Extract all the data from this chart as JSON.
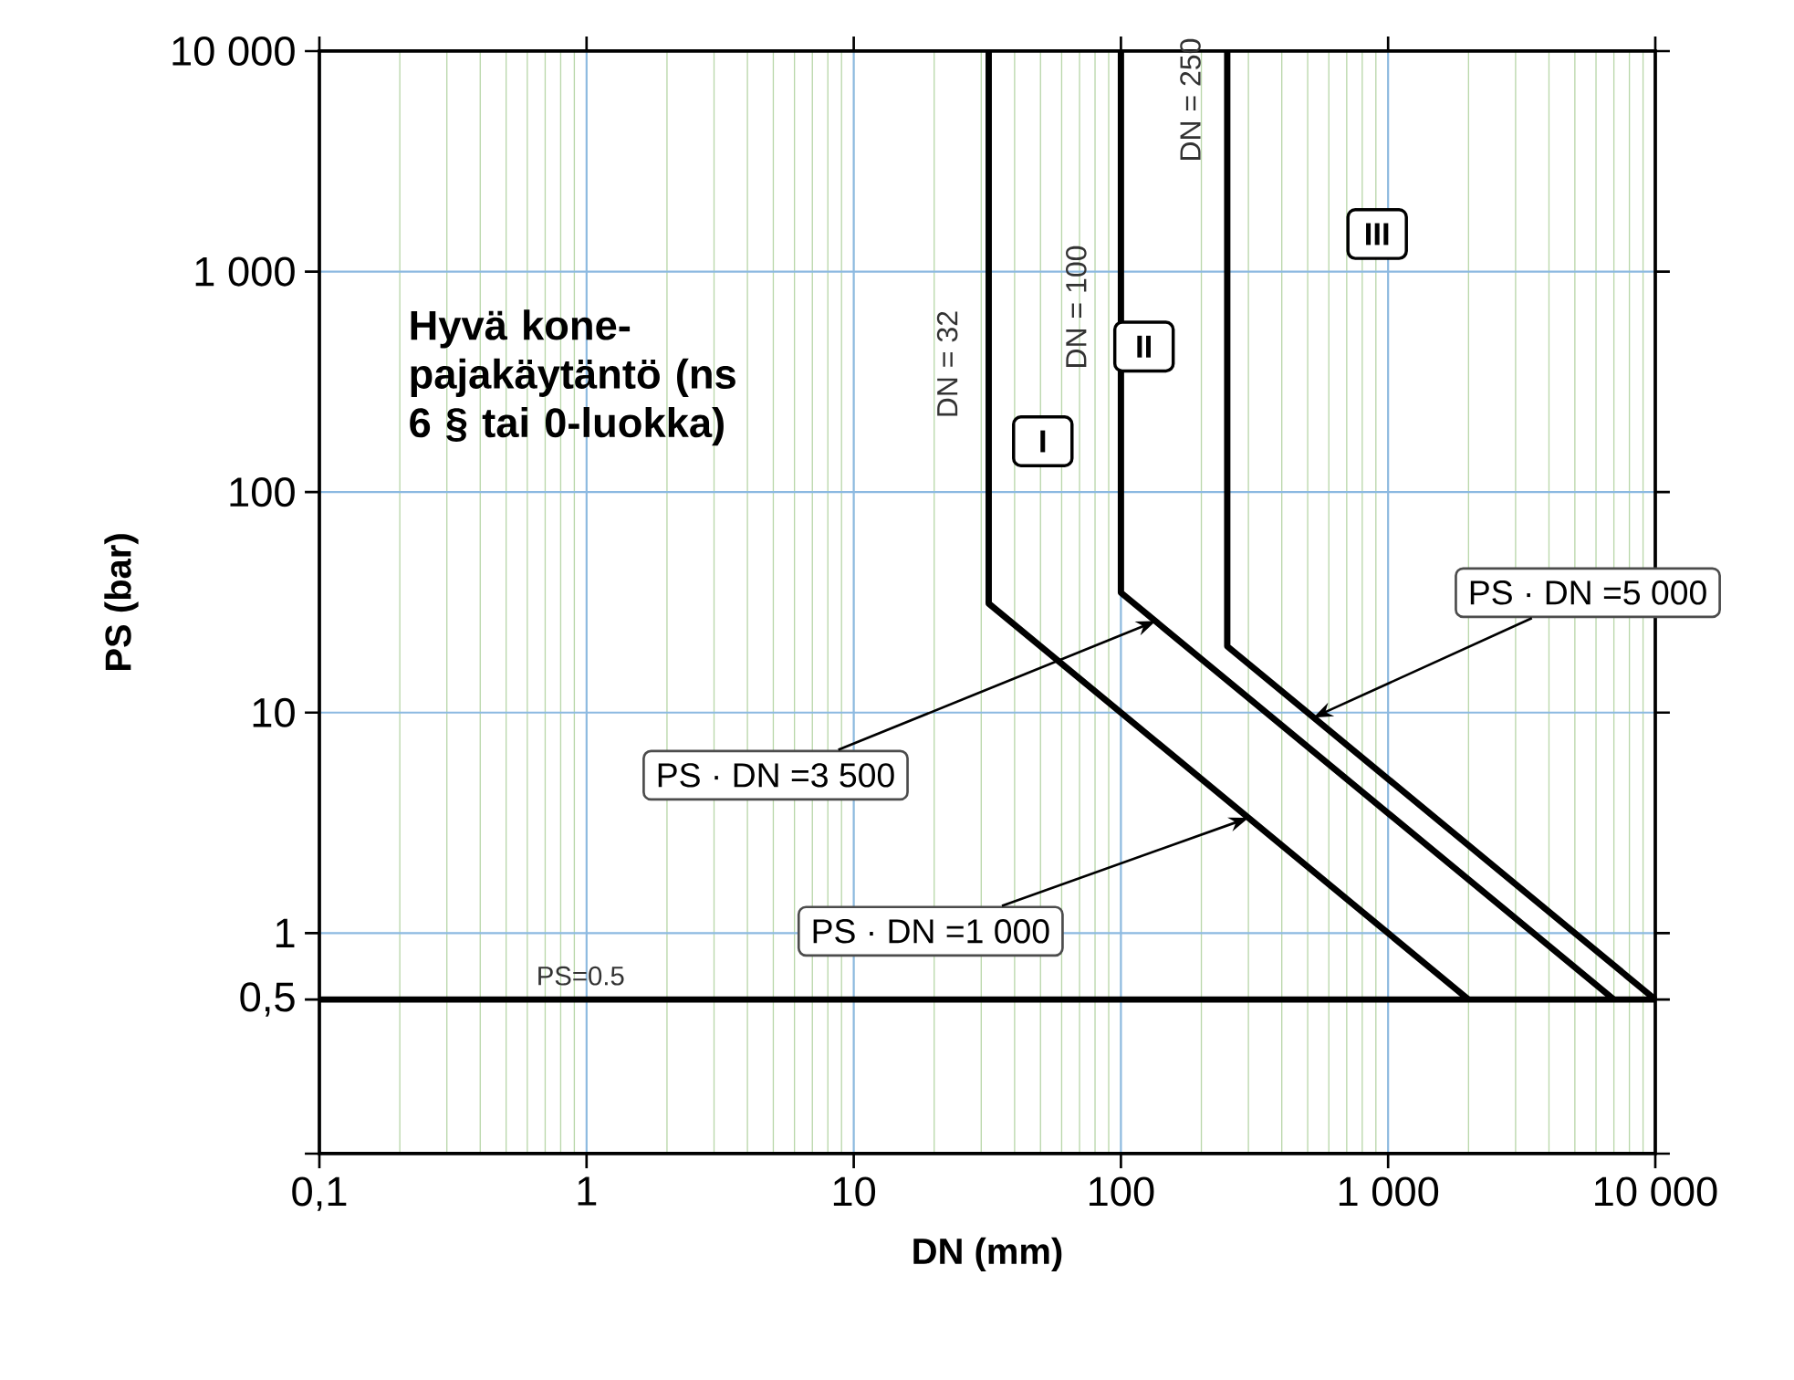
{
  "chart_data": {
    "type": "line",
    "xlabel": "DN (mm)",
    "ylabel": "PS (bar)",
    "log": "xy",
    "grid": true,
    "xlim": [
      0.1,
      10000
    ],
    "ylim": [
      0.1,
      10000
    ],
    "xticks": [
      {
        "value": 0.1,
        "label": "0,1"
      },
      1,
      10,
      100,
      {
        "value": 1000,
        "label": "1 000"
      },
      {
        "value": 10000,
        "label": "10 000"
      }
    ],
    "yticks": [
      {
        "value": 0.1,
        "label": null
      },
      {
        "value": 0.5,
        "label": "0,5"
      },
      1,
      10,
      100,
      {
        "value": 1000,
        "label": "1 000"
      },
      {
        "value": 10000,
        "label": "10 000"
      }
    ],
    "series": [
      {
        "name": "DN = 32",
        "color": "#000000",
        "x": [
          32,
          32,
          2000
        ],
        "values": [
          10000,
          31.25,
          0.5
        ]
      },
      {
        "name": "DN = 100",
        "color": "#000000",
        "x": [
          100,
          100,
          7000
        ],
        "values": [
          10000,
          35,
          0.5
        ]
      },
      {
        "name": "DN = 250",
        "color": "#000000",
        "x": [
          250,
          250,
          10000
        ],
        "values": [
          10000,
          20,
          0.5
        ]
      },
      {
        "name": "PS=0.5",
        "color": "#000000",
        "x": [
          0.1,
          10000
        ],
        "values": [
          0.5,
          0.5
        ]
      }
    ],
    "annotations": [
      "Hyvä kone-pajakäytäntö (ns 6 § tai 0-luokka)",
      "I",
      "II",
      "III",
      {
        "text": "PS · DN =1 000",
        "x": 300,
        "y": 3.33
      },
      {
        "text": "PS · DN =3 500",
        "x": 135,
        "y": 26
      },
      {
        "text": "PS · DN =5 000",
        "x": 525,
        "y": 9.5
      }
    ]
  }
}
